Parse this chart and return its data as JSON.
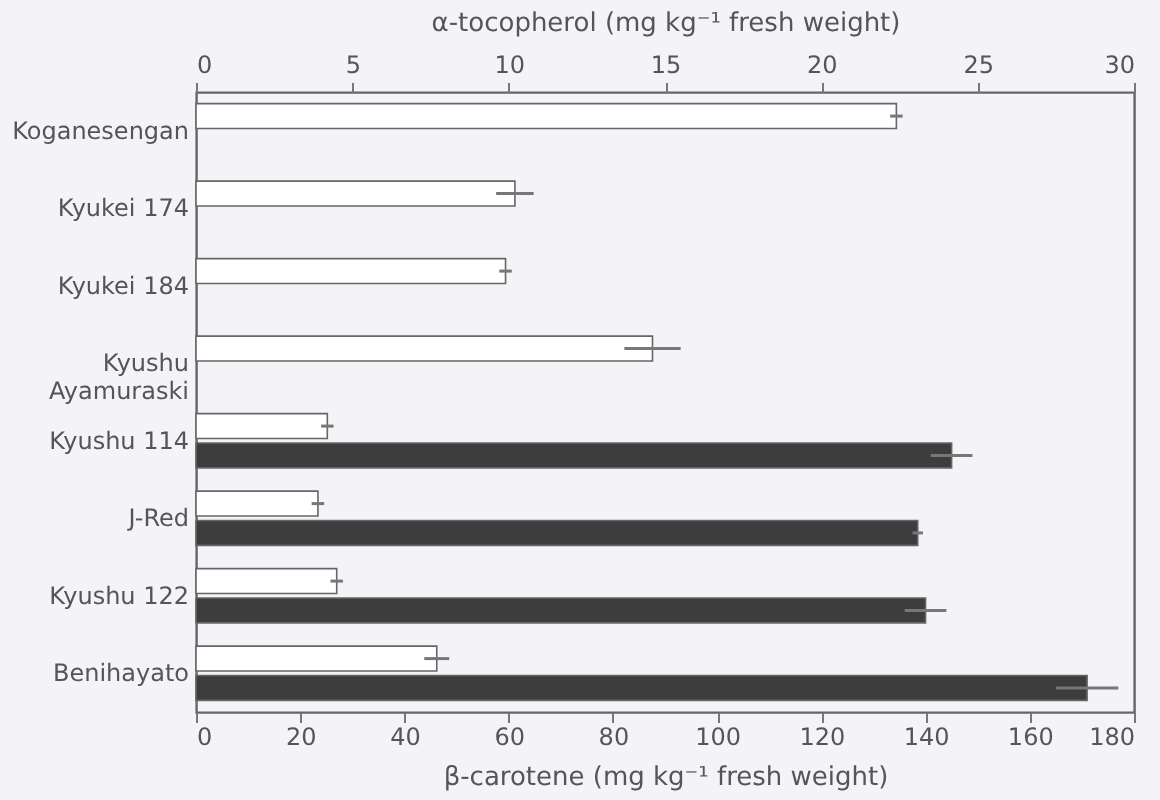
{
  "chart_data": {
    "type": "bar",
    "orientation": "horizontal",
    "categories": [
      "Koganesengan",
      "Kyukei 174",
      "Kyukei 184",
      "Kyushu\nAyamuraski",
      "Kyushu 114",
      "J-Red",
      "Kyushu 122",
      "Benihayato"
    ],
    "series": [
      {
        "axis": "x2",
        "color": "#ffffff",
        "values": [
          22.4,
          10.2,
          9.9,
          14.6,
          4.2,
          3.9,
          4.5,
          7.7
        ],
        "errors": [
          0.2,
          0.6,
          0.2,
          0.9,
          0.2,
          0.2,
          0.2,
          0.4
        ]
      },
      {
        "color": "#3d3d3d",
        "values": [
          null,
          null,
          null,
          null,
          145,
          138.5,
          140,
          171
        ],
        "errors": [
          null,
          null,
          null,
          null,
          4,
          1,
          4,
          6
        ]
      }
    ],
    "xlabel": "β-carotene (mg kg⁻¹ fresh weight)",
    "xlim": [
      0,
      180
    ],
    "xticks": [
      0,
      20,
      40,
      60,
      80,
      100,
      120,
      140,
      160,
      180
    ],
    "x2label": "α-tocopherol (mg kg⁻¹ fresh weight)",
    "x2lim": [
      0,
      30
    ],
    "x2ticks": [
      0,
      5,
      10,
      15,
      20,
      25,
      30
    ],
    "grid": false
  }
}
